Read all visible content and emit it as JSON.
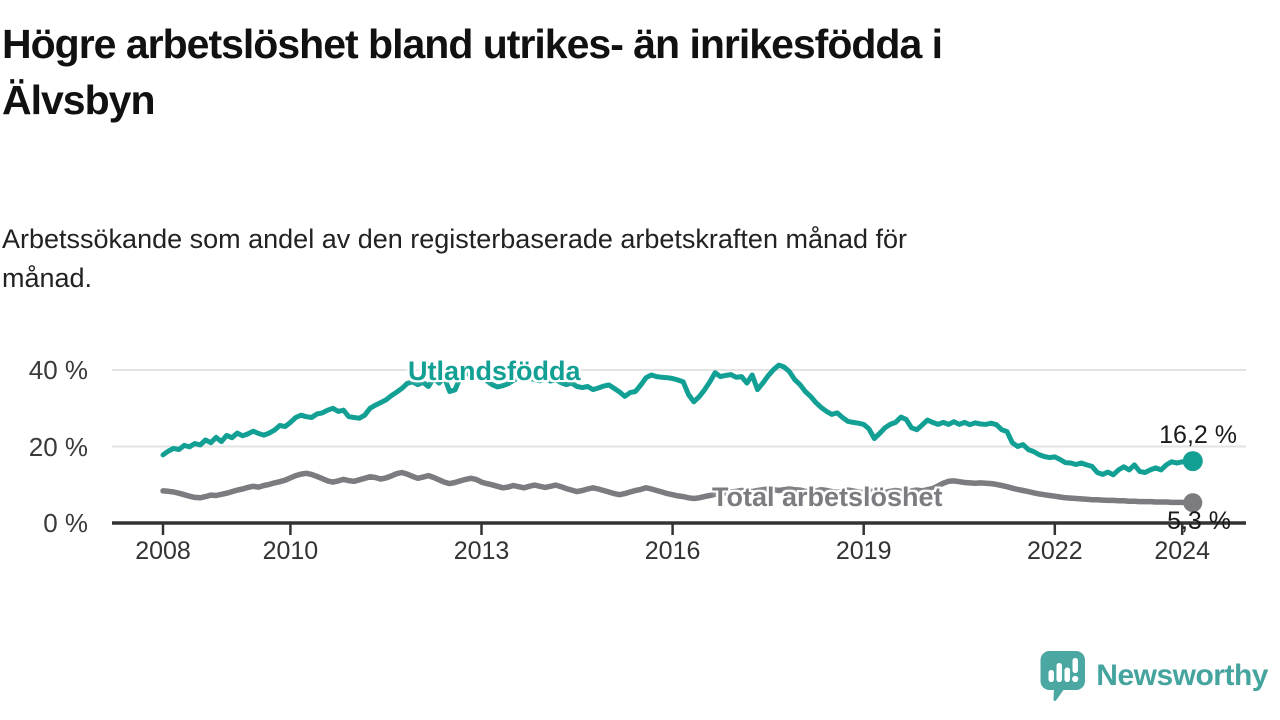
{
  "title": {
    "line1": "Högre arbetslöshet bland utrikes- än inrikesfödda i",
    "line2": "Älvsbyn",
    "full": "Högre arbetslöshet bland utrikes- än inrikesfödda i Älvsbyn"
  },
  "subtitle": {
    "line1": "Arbetssökande som andel av den registerbaserade arbetskraften månad för",
    "line2": "månad.",
    "full": "Arbetssökande som andel av den registerbaserade arbetskraften månad för månad."
  },
  "chart_data": {
    "type": "line",
    "title": "Högre arbetslöshet bland utrikes- än inrikesfödda i Älvsbyn",
    "xlabel": "",
    "ylabel": "",
    "x_unit": "monthly",
    "x_start": "2008-01",
    "x_end": "2024-03",
    "x_tick_years": [
      2008,
      2010,
      2013,
      2016,
      2019,
      2022,
      2024
    ],
    "x_tick_labels": [
      "2008",
      "2010",
      "2013",
      "2016",
      "2019",
      "2022",
      "2024"
    ],
    "y_ticks": [
      0,
      20,
      40
    ],
    "y_tick_labels": [
      "0 %",
      "20 %",
      "40 %"
    ],
    "ylim": [
      0,
      44
    ],
    "grid": "horizontal",
    "legend": "inline-labels",
    "axis_color": "#333333",
    "grid_color": "#e3e3e3",
    "series": [
      {
        "name": "Utlandsfödda",
        "color": "#13a094",
        "end_value": 16.2,
        "end_label": "16,2 %",
        "values": [
          17.8,
          18.8,
          19.5,
          19.2,
          20.3,
          19.9,
          20.8,
          20.4,
          21.7,
          21.0,
          22.4,
          21.3,
          22.9,
          22.3,
          23.5,
          22.8,
          23.3,
          24.0,
          23.4,
          23.0,
          23.5,
          24.3,
          25.5,
          25.2,
          26.3,
          27.6,
          28.2,
          27.8,
          27.6,
          28.5,
          28.8,
          29.5,
          30.0,
          29.2,
          29.5,
          27.8,
          27.6,
          27.4,
          28.2,
          30.0,
          30.8,
          31.5,
          32.2,
          33.3,
          34.2,
          35.2,
          36.5,
          36.9,
          36.2,
          36.8,
          35.7,
          37.9,
          36.6,
          38.1,
          34.4,
          34.8,
          38.1,
          39.4,
          38.6,
          38.9,
          38.4,
          37.2,
          36.2,
          35.6,
          35.9,
          36.4,
          37.3,
          38.0,
          38.2,
          37.9,
          37.5,
          37.2,
          37.9,
          37.1,
          37.5,
          36.7,
          36.2,
          36.6,
          35.7,
          35.4,
          35.7,
          34.9,
          35.3,
          35.8,
          36.1,
          35.2,
          34.3,
          33.1,
          34.1,
          34.4,
          36.1,
          38.0,
          38.7,
          38.3,
          38.1,
          38.0,
          37.8,
          37.4,
          36.9,
          33.6,
          31.7,
          33.0,
          34.8,
          36.9,
          39.3,
          38.3,
          38.6,
          38.8,
          38.1,
          38.3,
          36.6,
          38.7,
          34.9,
          36.6,
          38.5,
          40.1,
          41.3,
          40.8,
          39.6,
          37.5,
          36.2,
          34.4,
          33.1,
          31.5,
          30.2,
          29.2,
          28.4,
          28.8,
          27.6,
          26.6,
          26.3,
          26.1,
          25.8,
          24.6,
          22.1,
          23.4,
          24.9,
          25.8,
          26.3,
          27.7,
          27.1,
          24.9,
          24.4,
          25.6,
          26.9,
          26.3,
          25.8,
          26.3,
          25.8,
          26.5,
          25.8,
          26.3,
          25.7,
          26.2,
          25.9,
          25.8,
          26.1,
          25.7,
          24.4,
          23.9,
          21.0,
          20.0,
          20.5,
          19.2,
          18.7,
          17.9,
          17.4,
          17.1,
          17.3,
          16.6,
          15.8,
          15.7,
          15.3,
          15.7,
          15.2,
          14.8,
          13.2,
          12.7,
          13.3,
          12.6,
          13.9,
          14.7,
          13.9,
          15.2,
          13.5,
          13.2,
          13.9,
          14.4,
          13.9,
          15.2,
          16.0,
          15.7,
          16.0,
          15.8,
          16.2
        ]
      },
      {
        "name": "Total arbetslöshet",
        "color": "#7b7b80",
        "end_value": 5.3,
        "end_label": "5,3 %",
        "values": [
          8.4,
          8.3,
          8.1,
          7.8,
          7.4,
          7.0,
          6.7,
          6.6,
          6.9,
          7.3,
          7.2,
          7.5,
          7.8,
          8.2,
          8.6,
          8.9,
          9.3,
          9.6,
          9.4,
          9.8,
          10.1,
          10.5,
          10.8,
          11.2,
          11.8,
          12.4,
          12.8,
          13.0,
          12.7,
          12.2,
          11.6,
          11.0,
          10.7,
          11.0,
          11.4,
          11.1,
          10.9,
          11.3,
          11.7,
          12.1,
          11.9,
          11.5,
          11.8,
          12.3,
          12.9,
          13.2,
          12.8,
          12.2,
          11.7,
          12.0,
          12.4,
          11.9,
          11.3,
          10.7,
          10.3,
          10.6,
          11.0,
          11.4,
          11.7,
          11.4,
          10.7,
          10.3,
          10.0,
          9.6,
          9.2,
          9.4,
          9.8,
          9.5,
          9.2,
          9.6,
          9.9,
          9.6,
          9.3,
          9.6,
          9.9,
          9.5,
          9.0,
          8.6,
          8.2,
          8.5,
          8.9,
          9.2,
          8.9,
          8.5,
          8.1,
          7.7,
          7.4,
          7.7,
          8.1,
          8.5,
          8.8,
          9.2,
          8.9,
          8.5,
          8.1,
          7.7,
          7.4,
          7.1,
          6.9,
          6.6,
          6.4,
          6.6,
          6.9,
          7.2,
          7.5,
          7.7,
          7.9,
          8.1,
          8.3,
          8.5,
          8.4,
          8.2,
          8.5,
          8.7,
          8.9,
          8.7,
          8.5,
          8.7,
          8.9,
          8.7,
          8.6,
          8.3,
          8.1,
          8.4,
          8.7,
          8.5,
          8.2,
          8.0,
          8.3,
          8.6,
          8.4,
          8.1,
          7.9,
          8.1,
          8.4,
          8.2,
          8.0,
          8.3,
          8.5,
          8.3,
          8.1,
          8.4,
          8.6,
          8.4,
          8.7,
          9.0,
          9.7,
          10.4,
          10.9,
          11.0,
          10.8,
          10.6,
          10.5,
          10.4,
          10.5,
          10.4,
          10.3,
          10.1,
          9.8,
          9.5,
          9.1,
          8.8,
          8.5,
          8.2,
          7.9,
          7.6,
          7.4,
          7.2,
          7.0,
          6.8,
          6.6,
          6.5,
          6.4,
          6.3,
          6.2,
          6.1,
          6.1,
          6.0,
          5.9,
          5.9,
          5.8,
          5.8,
          5.7,
          5.7,
          5.6,
          5.6,
          5.6,
          5.5,
          5.5,
          5.5,
          5.4,
          5.4,
          5.4,
          5.3,
          5.3
        ]
      }
    ]
  },
  "footer": {
    "brand": "Newsworthy",
    "brand_color": "#45a49e",
    "logo_color": "#4ba7a1",
    "logo_icon": "bar-chart-speech-bubble-icon"
  }
}
